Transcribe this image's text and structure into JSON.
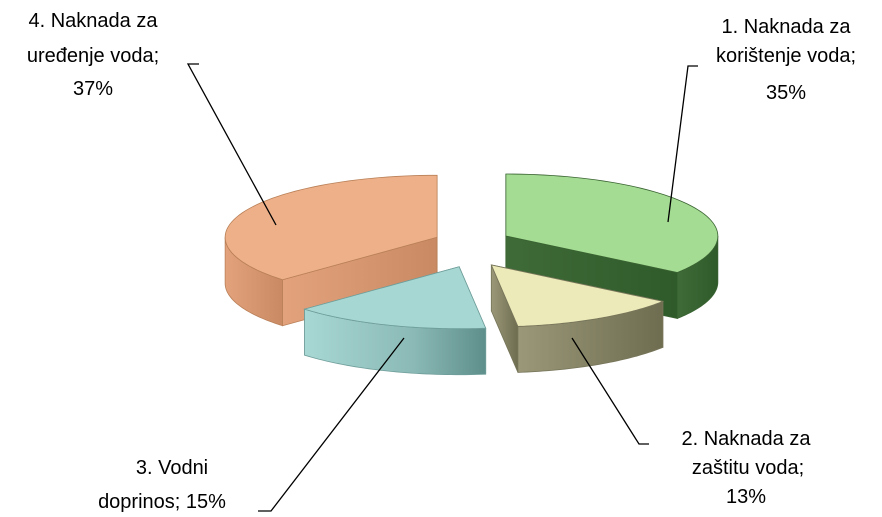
{
  "chart_data": {
    "type": "pie",
    "title": "",
    "slices": [
      {
        "label_lines": [
          "1. Naknada za",
          "korištenje voda;",
          "35%"
        ],
        "category": "1. Naknada za korištenje voda",
        "value": 35,
        "color": "#a3dc92"
      },
      {
        "label_lines": [
          "2. Naknada za",
          "zaštitu voda;",
          "13%"
        ],
        "category": "2. Naknada za zaštitu voda",
        "value": 13,
        "color": "#eceab8"
      },
      {
        "label_lines": [
          "3. Vodni",
          "doprinos;  15%"
        ],
        "category": "3. Vodni doprinos",
        "value": 15,
        "color": "#a7d7d3"
      },
      {
        "label_lines": [
          "4. Naknada za",
          "uređenje voda;",
          "37%"
        ],
        "category": "4. Naknada za uređenje voda",
        "value": 37,
        "color": "#eeb088"
      }
    ],
    "legend": "none",
    "style": "3d-exploded"
  }
}
